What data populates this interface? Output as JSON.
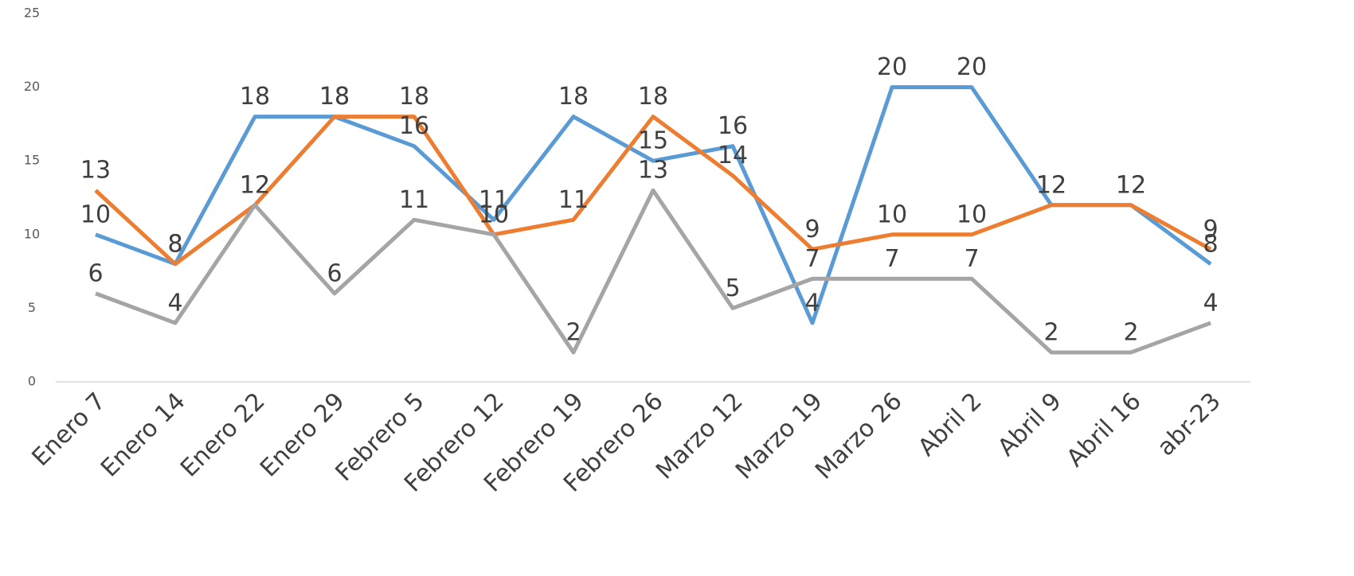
{
  "chart_data": {
    "type": "line",
    "categories": [
      "Enero 7",
      "Enero 14",
      "Enero 22",
      "Enero 29",
      "Febrero 5",
      "Febrero 12",
      "Febrero 19",
      "Febrero 26",
      "Marzo 12",
      "Marzo 19",
      "Marzo 26",
      "Abril 2",
      "Abril 9",
      "Abril 16",
      "abr-23"
    ],
    "series": [
      {
        "color": "#5b9bd5",
        "values": [
          10,
          8,
          18,
          18,
          16,
          11,
          18,
          15,
          16,
          4,
          20,
          20,
          12,
          12,
          8
        ]
      },
      {
        "color": "#ed7d31",
        "values": [
          13,
          8,
          12,
          18,
          18,
          10,
          11,
          18,
          14,
          9,
          10,
          10,
          12,
          12,
          9
        ]
      },
      {
        "color": "#a5a5a5",
        "values": [
          6,
          4,
          12,
          6,
          11,
          10,
          2,
          13,
          5,
          7,
          7,
          7,
          2,
          2,
          4
        ]
      }
    ],
    "ylim": [
      0,
      25
    ],
    "yticks": [
      0,
      5,
      10,
      15,
      20,
      25
    ],
    "grid": false
  }
}
